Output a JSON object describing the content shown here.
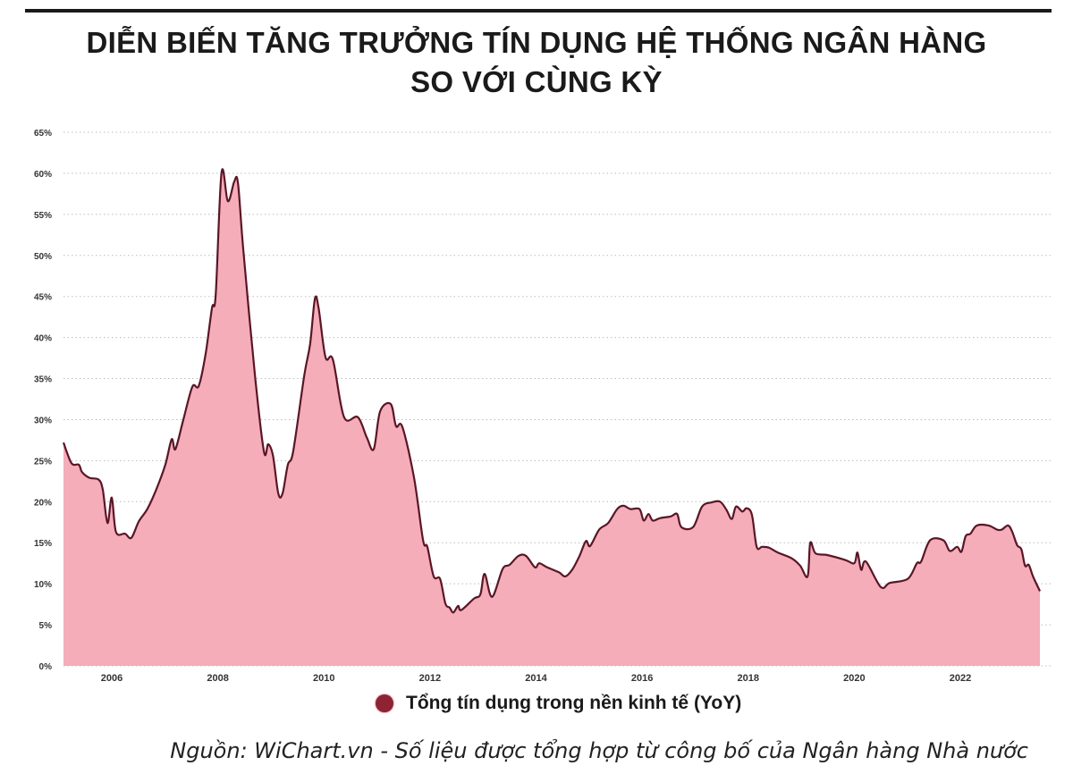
{
  "title_line1": "DIỄN BIẾN TĂNG TRƯỞNG TÍN DỤNG HỆ THỐNG NGÂN HÀNG",
  "title_line2": "SO VỚI CÙNG KỲ",
  "source": "Nguồn: WiChart.vn - Số liệu được tổng hợp từ công bố của Ngân hàng Nhà nước",
  "colors": {
    "fill": "#f4adb9",
    "line": "#5a1626",
    "legend_dot": "#8e2433",
    "grid": "#bdbdbd"
  },
  "chart_data": {
    "type": "area",
    "title": "DIỄN BIẾN TĂNG TRƯỞNG TÍN DỤNG HỆ THỐNG NGÂN HÀNG SO VỚI CÙNG KỲ",
    "xlabel": "",
    "ylabel": "",
    "xlim": [
      2005.09,
      2023.5
    ],
    "ylim": [
      0,
      65
    ],
    "grid": true,
    "legend_placement": "bottom",
    "x_ticks": [
      "2006",
      "2008",
      "2010",
      "2012",
      "2014",
      "2016",
      "2018",
      "2020",
      "2022"
    ],
    "y_ticks": [
      "0%",
      "5%",
      "10%",
      "15%",
      "20%",
      "25%",
      "30%",
      "35%",
      "40%",
      "45%",
      "50%",
      "55%",
      "60%",
      "65%"
    ],
    "series": [
      {
        "name": "Tổng tín dụng trong nền kinh tế (YoY)",
        "x": [
          2005.09,
          2005.24,
          2005.38,
          2005.44,
          2005.58,
          2005.75,
          2005.83,
          2005.92,
          2006.0,
          2006.08,
          2006.25,
          2006.37,
          2006.51,
          2006.67,
          2006.84,
          2007.01,
          2007.13,
          2007.2,
          2007.35,
          2007.52,
          2007.64,
          2007.77,
          2007.89,
          2007.96,
          2008.07,
          2008.19,
          2008.31,
          2008.38,
          2008.48,
          2008.7,
          2008.87,
          2008.95,
          2009.04,
          2009.14,
          2009.22,
          2009.32,
          2009.42,
          2009.63,
          2009.74,
          2009.83,
          2009.9,
          2010.03,
          2010.17,
          2010.38,
          2010.64,
          2010.81,
          2010.94,
          2011.06,
          2011.26,
          2011.36,
          2011.48,
          2011.7,
          2011.87,
          2011.95,
          2012.07,
          2012.19,
          2012.29,
          2012.37,
          2012.44,
          2012.53,
          2012.59,
          2012.83,
          2012.95,
          2013.03,
          2013.17,
          2013.37,
          2013.5,
          2013.67,
          2013.81,
          2013.98,
          2014.06,
          2014.21,
          2014.43,
          2014.55,
          2014.68,
          2014.82,
          2014.94,
          2015.02,
          2015.19,
          2015.36,
          2015.53,
          2015.65,
          2015.78,
          2015.95,
          2016.03,
          2016.12,
          2016.2,
          2016.34,
          2016.54,
          2016.66,
          2016.74,
          2016.96,
          2017.13,
          2017.3,
          2017.47,
          2017.59,
          2017.69,
          2017.77,
          2017.89,
          2017.97,
          2018.07,
          2018.16,
          2018.26,
          2018.39,
          2018.56,
          2018.82,
          2018.98,
          2019.12,
          2019.17,
          2019.27,
          2019.49,
          2019.83,
          2020.0,
          2020.06,
          2020.13,
          2020.22,
          2020.5,
          2020.67,
          2021.01,
          2021.18,
          2021.26,
          2021.43,
          2021.68,
          2021.8,
          2021.94,
          2022.02,
          2022.1,
          2022.19,
          2022.31,
          2022.53,
          2022.69,
          2022.78,
          2022.9,
          2022.98,
          2023.07,
          2023.15,
          2023.22,
          2023.29,
          2023.37,
          2023.5
        ],
        "values": [
          27.2,
          24.7,
          24.5,
          23.6,
          22.9,
          22.7,
          21.5,
          17.4,
          20.5,
          16.3,
          16.1,
          15.6,
          17.6,
          19.1,
          21.5,
          24.5,
          27.6,
          26.4,
          30.0,
          34.0,
          34.1,
          38.0,
          43.6,
          45.2,
          60.1,
          56.6,
          59.0,
          58.8,
          50.7,
          35.4,
          26.1,
          27.0,
          25.6,
          21.0,
          21.0,
          24.5,
          26.1,
          35.4,
          39.2,
          44.7,
          43.6,
          37.6,
          37.3,
          30.3,
          30.3,
          27.8,
          26.4,
          31.0,
          31.9,
          29.2,
          29.1,
          22.9,
          15.3,
          14.5,
          10.9,
          10.6,
          7.6,
          7.1,
          6.5,
          7.3,
          6.8,
          8.2,
          8.7,
          11.2,
          8.4,
          11.8,
          12.3,
          13.4,
          13.4,
          12.0,
          12.5,
          12.0,
          11.4,
          10.9,
          11.7,
          13.4,
          15.2,
          14.6,
          16.6,
          17.4,
          19.1,
          19.5,
          19.1,
          19.1,
          17.7,
          18.5,
          17.7,
          18.0,
          18.2,
          18.5,
          16.9,
          16.9,
          19.4,
          19.9,
          20.0,
          19.0,
          17.9,
          19.4,
          18.8,
          19.2,
          18.4,
          14.5,
          14.5,
          14.4,
          13.8,
          13.1,
          12.2,
          10.9,
          15.0,
          13.7,
          13.5,
          12.9,
          12.5,
          13.8,
          11.7,
          12.7,
          9.6,
          10.1,
          10.6,
          12.5,
          12.7,
          15.3,
          15.3,
          14.0,
          14.5,
          13.9,
          15.8,
          16.1,
          17.1,
          17.1,
          16.6,
          16.6,
          17.1,
          16.3,
          14.7,
          14.2,
          12.2,
          12.3,
          10.9,
          9.1
        ]
      }
    ]
  }
}
